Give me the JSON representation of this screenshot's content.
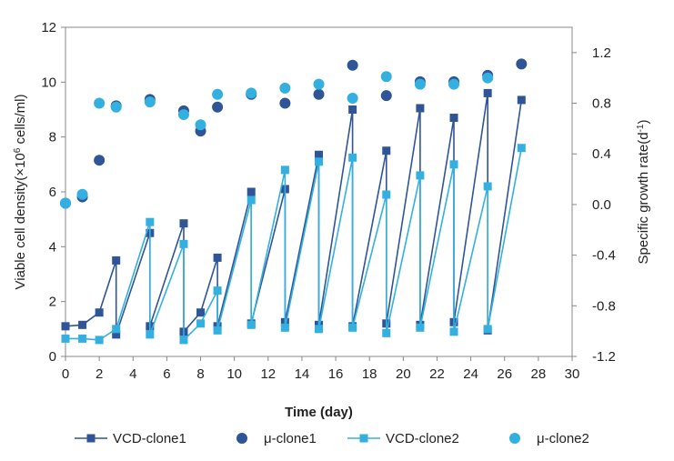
{
  "chart_data": {
    "type": "line",
    "title": "",
    "xlabel": "Time (day)",
    "ylabel": "Viable cell density(×10",
    "ylabel_sup": "6",
    "ylabel_tail": " cells/ml)",
    "y2label": "Specific growth rate(d",
    "y2label_sup": "-1",
    "y2label_tail": ")",
    "xlim": [
      0,
      30
    ],
    "ylim": [
      0,
      12
    ],
    "y2lim": [
      -1.2,
      1.4
    ],
    "xticks": [
      "0",
      "2",
      "4",
      "6",
      "8",
      "10",
      "12",
      "14",
      "16",
      "18",
      "20",
      "22",
      "24",
      "26",
      "28",
      "30"
    ],
    "yticks": [
      "0",
      "2",
      "4",
      "6",
      "8",
      "10",
      "12"
    ],
    "y2ticks": [
      "-1.2",
      "-0.8",
      "-0.4",
      "0.0",
      "0.4",
      "0.8",
      "1.2"
    ],
    "grid": false,
    "legend_position": "bottom",
    "colors": {
      "clone1": "#2f5597",
      "clone2": "#33b0e0"
    },
    "series": [
      {
        "name": "VCD-clone1",
        "axis": "left",
        "marker": "square",
        "color": "#2f5597",
        "points": [
          [
            0,
            1.1
          ],
          [
            1,
            1.15
          ],
          [
            2,
            1.6
          ],
          [
            3,
            3.5
          ],
          [
            3,
            0.8
          ],
          [
            5,
            4.5
          ],
          [
            5,
            1.1
          ],
          [
            7,
            4.85
          ],
          [
            7,
            0.9
          ],
          [
            8,
            1.6
          ],
          [
            9,
            3.6
          ],
          [
            9,
            1.1
          ],
          [
            11,
            6.0
          ],
          [
            11,
            1.2
          ],
          [
            13,
            6.1
          ],
          [
            13,
            1.25
          ],
          [
            15,
            7.35
          ],
          [
            15,
            1.15
          ],
          [
            17,
            9.0
          ],
          [
            17,
            1.1
          ],
          [
            19,
            7.5
          ],
          [
            19,
            1.2
          ],
          [
            21,
            9.05
          ],
          [
            21,
            1.15
          ],
          [
            23,
            8.7
          ],
          [
            23,
            1.25
          ],
          [
            25,
            9.6
          ],
          [
            25,
            0.95
          ],
          [
            27,
            9.35
          ]
        ]
      },
      {
        "name": "μ-clone1",
        "axis": "right",
        "marker": "circle",
        "color": "#2f5597",
        "points": [
          [
            0,
            0.01
          ],
          [
            1,
            0.06
          ],
          [
            2,
            0.35
          ],
          [
            3,
            0.78
          ],
          [
            5,
            0.83
          ],
          [
            7,
            0.74
          ],
          [
            8,
            0.58
          ],
          [
            9,
            0.77
          ],
          [
            11,
            0.87
          ],
          [
            13,
            0.8
          ],
          [
            15,
            0.87
          ],
          [
            17,
            1.1
          ],
          [
            19,
            0.86
          ],
          [
            21,
            0.97
          ],
          [
            23,
            0.97
          ],
          [
            25,
            1.02
          ],
          [
            27,
            1.11
          ]
        ]
      },
      {
        "name": "VCD-clone2",
        "axis": "left",
        "marker": "square",
        "color": "#33b0e0",
        "points": [
          [
            0,
            0.65
          ],
          [
            1,
            0.65
          ],
          [
            2,
            0.6
          ],
          [
            3,
            1.0
          ],
          [
            5,
            4.9
          ],
          [
            5,
            0.8
          ],
          [
            7,
            4.1
          ],
          [
            7,
            0.6
          ],
          [
            8,
            1.2
          ],
          [
            9,
            2.4
          ],
          [
            9,
            0.95
          ],
          [
            11,
            5.7
          ],
          [
            11,
            1.15
          ],
          [
            13,
            6.8
          ],
          [
            13,
            1.05
          ],
          [
            15,
            7.1
          ],
          [
            15,
            1.0
          ],
          [
            17,
            7.25
          ],
          [
            17,
            1.05
          ],
          [
            19,
            5.9
          ],
          [
            19,
            0.85
          ],
          [
            21,
            6.6
          ],
          [
            21,
            1.05
          ],
          [
            23,
            7.0
          ],
          [
            23,
            0.9
          ],
          [
            25,
            6.2
          ],
          [
            25,
            1.0
          ],
          [
            27,
            7.6
          ]
        ]
      },
      {
        "name": "μ-clone2",
        "axis": "right",
        "marker": "circle",
        "color": "#33b0e0",
        "points": [
          [
            0,
            0.01
          ],
          [
            1,
            0.08
          ],
          [
            2,
            0.8
          ],
          [
            3,
            0.77
          ],
          [
            5,
            0.81
          ],
          [
            7,
            0.71
          ],
          [
            8,
            0.63
          ],
          [
            9,
            0.87
          ],
          [
            11,
            0.88
          ],
          [
            13,
            0.92
          ],
          [
            15,
            0.95
          ],
          [
            17,
            0.84
          ],
          [
            19,
            1.01
          ],
          [
            21,
            0.95
          ],
          [
            23,
            0.95
          ],
          [
            25,
            1.0
          ]
        ]
      }
    ]
  }
}
